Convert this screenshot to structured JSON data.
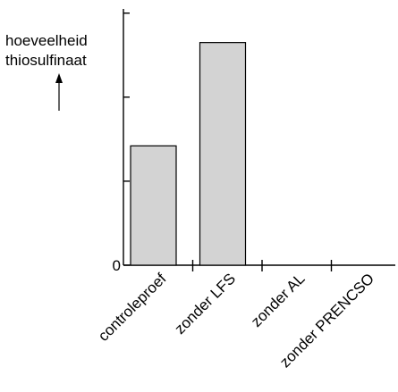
{
  "chart_data": {
    "type": "bar",
    "ylabel": [
      "hoeveelheid",
      "thiosulfinaat"
    ],
    "categories": [
      "controleproef",
      "zonder LFS",
      "zonder AL",
      "zonder PRENCSO"
    ],
    "values": [
      1.42,
      2.65,
      0,
      0
    ],
    "ylim": [
      0,
      3.05
    ],
    "yticks": [
      0,
      1,
      2,
      3
    ],
    "ytick_labels": [
      "0",
      "",
      "",
      ""
    ],
    "grid": false,
    "legend": false,
    "colors": {
      "bar_fill": "#d3d3d3",
      "bar_stroke": "#000000",
      "axis": "#000000"
    }
  }
}
